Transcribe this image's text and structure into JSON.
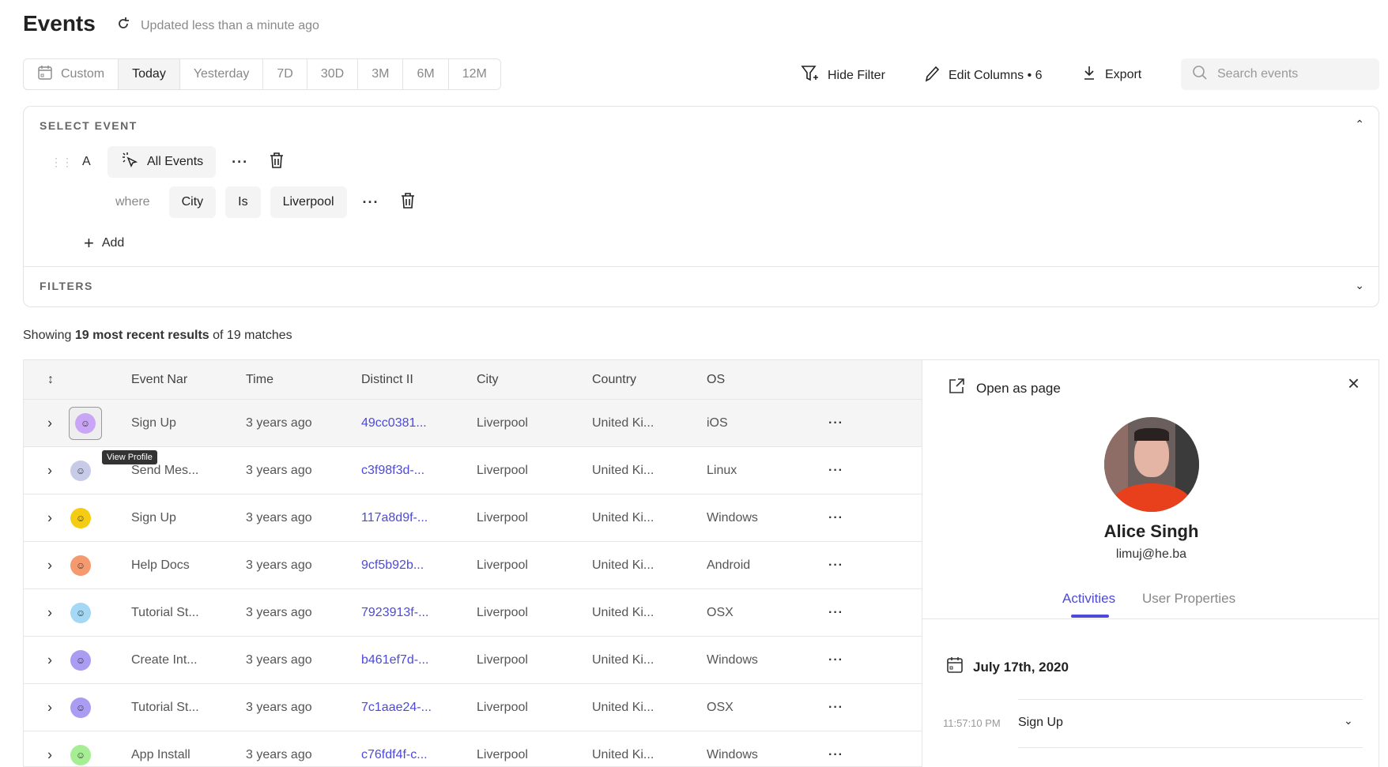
{
  "header": {
    "title": "Events",
    "updated": "Updated less than a minute ago"
  },
  "date_range": {
    "options": [
      "Custom",
      "Today",
      "Yesterday",
      "7D",
      "30D",
      "3M",
      "6M",
      "12M"
    ],
    "selected": "Today"
  },
  "toolbar": {
    "hide_filter": "Hide Filter",
    "edit_columns": "Edit Columns • 6",
    "export": "Export",
    "search_placeholder": "Search events"
  },
  "select_event": {
    "heading": "SELECT EVENT",
    "letter": "A",
    "event": "All Events",
    "where": "where",
    "property": "City",
    "operator": "Is",
    "value": "Liverpool",
    "add": "Add"
  },
  "filters": {
    "heading": "FILTERS"
  },
  "summary": {
    "prefix": "Showing ",
    "bold": "19 most recent results",
    "suffix": " of 19 matches"
  },
  "table": {
    "columns": [
      "Event Nar",
      "Time",
      "Distinct II",
      "City",
      "Country",
      "OS"
    ],
    "tooltip": "View Profile",
    "rows": [
      {
        "event": "Sign Up",
        "time": "3 years ago",
        "distinct_id": "49cc0381...",
        "city": "Liverpool",
        "country": "United Ki...",
        "os": "iOS",
        "avatar_color": "#c9a6f5"
      },
      {
        "event": "Send Mes...",
        "time": "3 years ago",
        "distinct_id": "c3f98f3d-...",
        "city": "Liverpool",
        "country": "United Ki...",
        "os": "Linux",
        "avatar_color": "#c8cbe8"
      },
      {
        "event": "Sign Up",
        "time": "3 years ago",
        "distinct_id": "117a8d9f-...",
        "city": "Liverpool",
        "country": "United Ki...",
        "os": "Windows",
        "avatar_color": "#f5cc14"
      },
      {
        "event": "Help Docs",
        "time": "3 years ago",
        "distinct_id": "9cf5b92b...",
        "city": "Liverpool",
        "country": "United Ki...",
        "os": "Android",
        "avatar_color": "#f59a6e"
      },
      {
        "event": "Tutorial St...",
        "time": "3 years ago",
        "distinct_id": "7923913f-...",
        "city": "Liverpool",
        "country": "United Ki...",
        "os": "OSX",
        "avatar_color": "#a4d8f5"
      },
      {
        "event": "Create Int...",
        "time": "3 years ago",
        "distinct_id": "b461ef7d-...",
        "city": "Liverpool",
        "country": "United Ki...",
        "os": "Windows",
        "avatar_color": "#a99cf2"
      },
      {
        "event": "Tutorial St...",
        "time": "3 years ago",
        "distinct_id": "7c1aae24-...",
        "city": "Liverpool",
        "country": "United Ki...",
        "os": "OSX",
        "avatar_color": "#a99cf2"
      },
      {
        "event": "App Install",
        "time": "3 years ago",
        "distinct_id": "c76fdf4f-c...",
        "city": "Liverpool",
        "country": "United Ki...",
        "os": "Windows",
        "avatar_color": "#a6ee94"
      }
    ]
  },
  "profile": {
    "open_as_page": "Open as page",
    "name": "Alice Singh",
    "email": "limuj@he.ba",
    "tabs": [
      "Activities",
      "User Properties"
    ],
    "active_tab": "Activities",
    "date": "July 17th, 2020",
    "activity": {
      "time": "11:57:10 PM",
      "event": "Sign Up"
    }
  },
  "colors": {
    "accent": "#4d4ad9"
  }
}
